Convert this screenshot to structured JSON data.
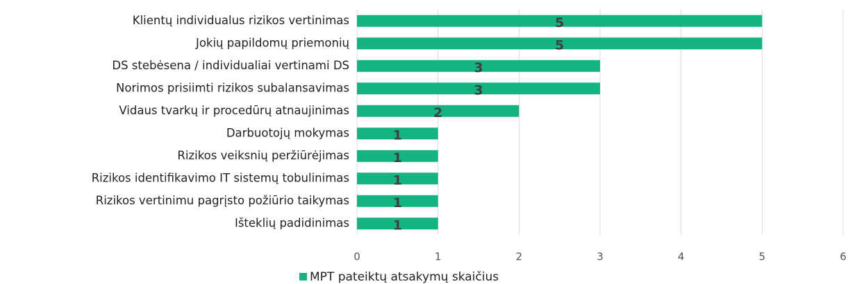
{
  "chart_data": {
    "type": "bar",
    "orientation": "horizontal",
    "categories": [
      "Klientų individualus rizikos vertinimas",
      "Jokių papildomų priemonių",
      "DS stebėsena / individualiai vertinami DS",
      "Norimos prisiimti rizikos subalansavimas",
      "Vidaus tvarkų ir procedūrų atnaujinimas",
      "Darbuotojų mokymas",
      "Rizikos veiksnių peržiūrėjimas",
      "Rizikos identifikavimo IT sistemų tobulinimas",
      "Rizikos vertinimu pagrįsto požiūrio taikymas",
      "Išteklių padidinimas"
    ],
    "series": [
      {
        "name": "MPT pateiktų atsakymų skaičius",
        "color": "#14b482",
        "values": [
          5,
          5,
          3,
          3,
          2,
          1,
          1,
          1,
          1,
          1
        ]
      }
    ],
    "xlim": [
      0,
      6
    ],
    "xticks": [
      0,
      1,
      2,
      3,
      4,
      5,
      6
    ],
    "grid": true,
    "legend": "bottom"
  }
}
